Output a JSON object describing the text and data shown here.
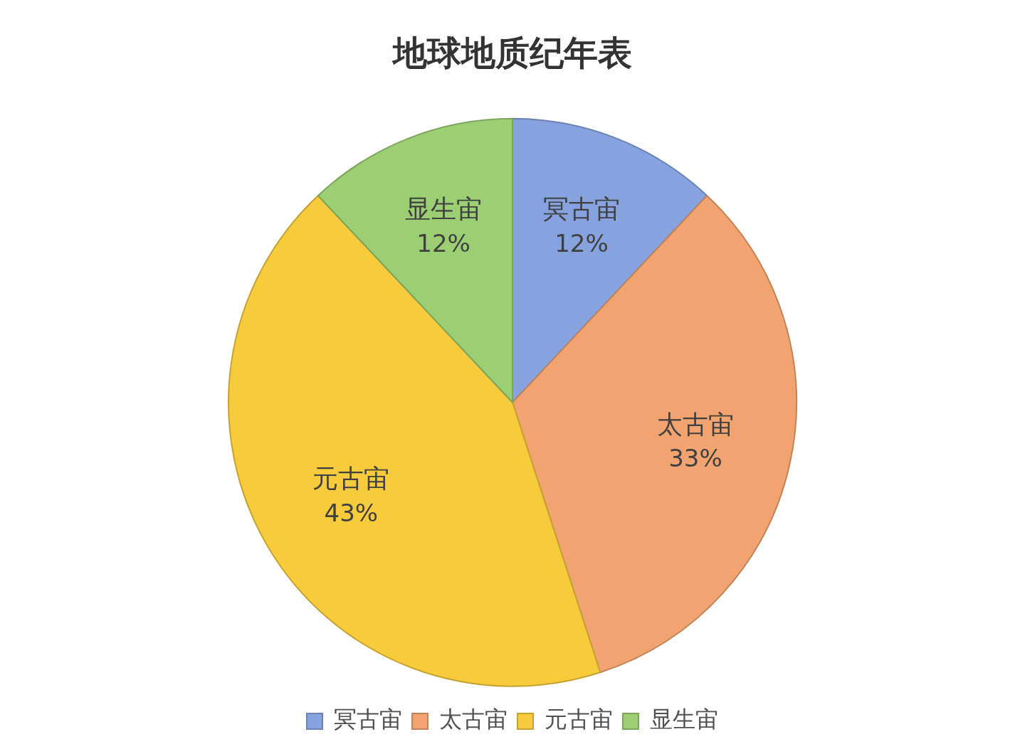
{
  "chart_data": {
    "type": "pie",
    "title": "地球地质纪年表",
    "categories": [
      "冥古宙",
      "太古宙",
      "元古宙",
      "显生宙"
    ],
    "values": [
      12,
      33,
      43,
      12
    ],
    "value_labels": [
      "12%",
      "33%",
      "43%",
      "12%"
    ],
    "colors": [
      "#86a3df",
      "#f1a46f",
      "#f8cb3c",
      "#9ccf74"
    ],
    "legend": "bottom"
  }
}
